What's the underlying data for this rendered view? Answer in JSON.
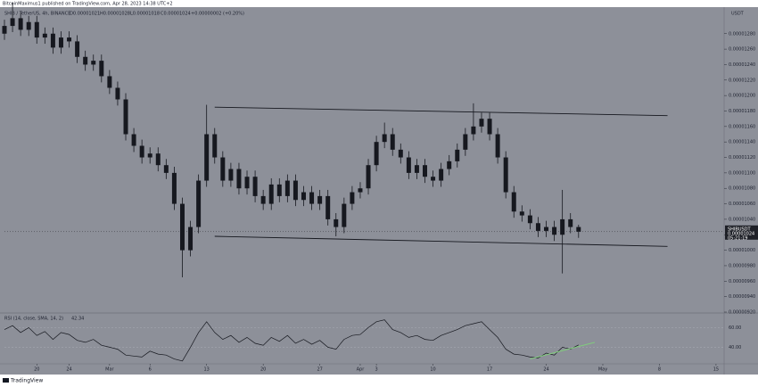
{
  "chart_data": {
    "type": "candlestick",
    "published": "BitcoinMaximus1 published on TradingView.com, Apr 28, 2023 14:38 UTC+2",
    "legend": {
      "symbol": "SHIB / TetherUS, 4h, BINANCE",
      "open": "O0.00001021",
      "high": "H0.00001028",
      "low": "L0.00001018",
      "close": "C0.00001024",
      "change": "+0.00000002 (+0.20%)"
    },
    "currency": "USDT",
    "up_color": "#16181f",
    "down_color": "#16181f",
    "background": "#8d9099",
    "x": [
      "Feb 16",
      "Feb 17",
      "Feb 18",
      "Feb 19",
      "Feb 20",
      "Feb 21",
      "Feb 22",
      "Feb 23",
      "Feb 24",
      "Feb 25",
      "Feb 26",
      "Feb 27",
      "Feb 28",
      "Mar 1",
      "Mar 2",
      "Mar 3",
      "Mar 4",
      "Mar 5",
      "Mar 6",
      "Mar 7",
      "Mar 8",
      "Mar 9",
      "Mar 10",
      "Mar 11",
      "Mar 12",
      "Mar 13",
      "Mar 14",
      "Mar 15",
      "Mar 16",
      "Mar 17",
      "Mar 18",
      "Mar 19",
      "Mar 20",
      "Mar 21",
      "Mar 22",
      "Mar 23",
      "Mar 24",
      "Mar 25",
      "Mar 26",
      "Mar 27",
      "Mar 28",
      "Mar 29",
      "Mar 30",
      "Mar 31",
      "Apr 1",
      "Apr 2",
      "Apr 3",
      "Apr 4",
      "Apr 5",
      "Apr 6",
      "Apr 7",
      "Apr 8",
      "Apr 9",
      "Apr 10",
      "Apr 11",
      "Apr 12",
      "Apr 13",
      "Apr 14",
      "Apr 15",
      "Apr 16",
      "Apr 17",
      "Apr 18",
      "Apr 19",
      "Apr 20",
      "Apr 21",
      "Apr 22",
      "Apr 23",
      "Apr 24",
      "Apr 25",
      "Apr 26",
      "Apr 27",
      "Apr 28"
    ],
    "open": [
      1.28e-05,
      1.29e-05,
      1.3e-05,
      1.285e-05,
      1.295e-05,
      1.275e-05,
      1.28e-05,
      1.262e-05,
      1.275e-05,
      1.27e-05,
      1.25e-05,
      1.24e-05,
      1.245e-05,
      1.225e-05,
      1.21e-05,
      1.195e-05,
      1.15e-05,
      1.135e-05,
      1.12e-05,
      1.125e-05,
      1.11e-05,
      1.1e-05,
      1.06e-05,
      1e-05,
      1.03e-05,
      1.09e-05,
      1.15e-05,
      1.12e-05,
      1.09e-05,
      1.105e-05,
      1.08e-05,
      1.095e-05,
      1.07e-05,
      1.06e-05,
      1.085e-05,
      1.07e-05,
      1.09e-05,
      1.065e-05,
      1.075e-05,
      1.06e-05,
      1.07e-05,
      1.04e-05,
      1.03e-05,
      1.06e-05,
      1.075e-05,
      1.08e-05,
      1.11e-05,
      1.14e-05,
      1.15e-05,
      1.13e-05,
      1.12e-05,
      1.1e-05,
      1.11e-05,
      1.095e-05,
      1.09e-05,
      1.105e-05,
      1.115e-05,
      1.13e-05,
      1.15e-05,
      1.16e-05,
      1.17e-05,
      1.15e-05,
      1.12e-05,
      1.075e-05,
      1.05e-05,
      1.045e-05,
      1.035e-05,
      1.025e-05,
      1.03e-05,
      1.02e-05,
      1.04e-05,
      1.03e-05
    ],
    "high": [
      1.298e-05,
      1.32e-05,
      1.308e-05,
      1.303e-05,
      1.303e-05,
      1.288e-05,
      1.288e-05,
      1.283e-05,
      1.283e-05,
      1.278e-05,
      1.258e-05,
      1.253e-05,
      1.253e-05,
      1.233e-05,
      1.218e-05,
      1.203e-05,
      1.158e-05,
      1.143e-05,
      1.133e-05,
      1.133e-05,
      1.118e-05,
      1.108e-05,
      1.068e-05,
      1.038e-05,
      1.098e-05,
      1.188e-05,
      1.158e-05,
      1.128e-05,
      1.113e-05,
      1.113e-05,
      1.103e-05,
      1.103e-05,
      1.078e-05,
      1.093e-05,
      1.093e-05,
      1.098e-05,
      1.098e-05,
      1.083e-05,
      1.083e-05,
      1.078e-05,
      1.078e-05,
      1.048e-05,
      1.068e-05,
      1.083e-05,
      1.088e-05,
      1.118e-05,
      1.148e-05,
      1.165e-05,
      1.158e-05,
      1.138e-05,
      1.128e-05,
      1.118e-05,
      1.118e-05,
      1.103e-05,
      1.113e-05,
      1.123e-05,
      1.138e-05,
      1.158e-05,
      1.19e-05,
      1.178e-05,
      1.178e-05,
      1.158e-05,
      1.128e-05,
      1.083e-05,
      1.058e-05,
      1.053e-05,
      1.043e-05,
      1.038e-05,
      1.038e-05,
      1.078e-05,
      1.048e-05,
      1.033e-05
    ],
    "low": [
      1.272e-05,
      1.282e-05,
      1.277e-05,
      1.277e-05,
      1.267e-05,
      1.267e-05,
      1.254e-05,
      1.254e-05,
      1.262e-05,
      1.242e-05,
      1.232e-05,
      1.232e-05,
      1.217e-05,
      1.202e-05,
      1.187e-05,
      1.142e-05,
      1.127e-05,
      1.112e-05,
      1.112e-05,
      1.102e-05,
      1.092e-05,
      1.052e-05,
      9.65e-06,
      9.92e-06,
      1.022e-05,
      1.082e-05,
      1.112e-05,
      1.082e-05,
      1.082e-05,
      1.072e-05,
      1.072e-05,
      1.062e-05,
      1.052e-05,
      1.052e-05,
      1.062e-05,
      1.062e-05,
      1.057e-05,
      1.057e-05,
      1.052e-05,
      1.052e-05,
      1.032e-05,
      1.018e-05,
      1.022e-05,
      1.052e-05,
      1.067e-05,
      1.072e-05,
      1.102e-05,
      1.132e-05,
      1.122e-05,
      1.112e-05,
      1.092e-05,
      1.092e-05,
      1.087e-05,
      1.082e-05,
      1.082e-05,
      1.097e-05,
      1.107e-05,
      1.122e-05,
      1.142e-05,
      1.152e-05,
      1.142e-05,
      1.112e-05,
      1.067e-05,
      1.042e-05,
      1.037e-05,
      1.027e-05,
      1.017e-05,
      1.017e-05,
      1.012e-05,
      9.7e-06,
      1.022e-05,
      1.016e-05
    ],
    "close": [
      1.29e-05,
      1.3e-05,
      1.285e-05,
      1.295e-05,
      1.275e-05,
      1.28e-05,
      1.262e-05,
      1.275e-05,
      1.27e-05,
      1.25e-05,
      1.24e-05,
      1.245e-05,
      1.225e-05,
      1.21e-05,
      1.195e-05,
      1.15e-05,
      1.135e-05,
      1.12e-05,
      1.125e-05,
      1.11e-05,
      1.1e-05,
      1.06e-05,
      1e-05,
      1.03e-05,
      1.09e-05,
      1.15e-05,
      1.12e-05,
      1.09e-05,
      1.105e-05,
      1.08e-05,
      1.095e-05,
      1.07e-05,
      1.06e-05,
      1.085e-05,
      1.07e-05,
      1.09e-05,
      1.065e-05,
      1.075e-05,
      1.06e-05,
      1.07e-05,
      1.04e-05,
      1.03e-05,
      1.06e-05,
      1.075e-05,
      1.08e-05,
      1.11e-05,
      1.14e-05,
      1.15e-05,
      1.13e-05,
      1.12e-05,
      1.1e-05,
      1.11e-05,
      1.095e-05,
      1.09e-05,
      1.105e-05,
      1.115e-05,
      1.13e-05,
      1.15e-05,
      1.16e-05,
      1.17e-05,
      1.15e-05,
      1.12e-05,
      1.075e-05,
      1.05e-05,
      1.045e-05,
      1.035e-05,
      1.025e-05,
      1.03e-05,
      1.02e-05,
      1.04e-05,
      1.03e-05,
      1.024e-05
    ],
    "xlim": [
      "Feb 16",
      "May 16"
    ],
    "xticks": [
      {
        "value": "Feb 20",
        "label": "20"
      },
      {
        "value": "Feb 24",
        "label": "24"
      },
      {
        "value": "Mar 1",
        "label": "Mar"
      },
      {
        "value": "Mar 6",
        "label": "6"
      },
      {
        "value": "Mar 13",
        "label": "13"
      },
      {
        "value": "Mar 20",
        "label": "20"
      },
      {
        "value": "Mar 27",
        "label": "27"
      },
      {
        "value": "Apr 1",
        "label": "Apr"
      },
      {
        "value": "Apr 3",
        "label": "3"
      },
      {
        "value": "Apr 10",
        "label": "10"
      },
      {
        "value": "Apr 17",
        "label": "17"
      },
      {
        "value": "Apr 24",
        "label": "24"
      },
      {
        "value": "May 1",
        "label": "May"
      },
      {
        "value": "May 8",
        "label": "8"
      },
      {
        "value": "May 15",
        "label": "15"
      }
    ],
    "ylim": [
      9.2e-06,
      1.312e-05
    ],
    "yticks": [
      {
        "value": 1.28e-05,
        "label": "0.00001280"
      },
      {
        "value": 1.26e-05,
        "label": "0.00001260"
      },
      {
        "value": 1.24e-05,
        "label": "0.00001240"
      },
      {
        "value": 1.22e-05,
        "label": "0.00001220"
      },
      {
        "value": 1.2e-05,
        "label": "0.00001200"
      },
      {
        "value": 1.18e-05,
        "label": "0.00001180"
      },
      {
        "value": 1.16e-05,
        "label": "0.00001160"
      },
      {
        "value": 1.14e-05,
        "label": "0.00001140"
      },
      {
        "value": 1.12e-05,
        "label": "0.00001120"
      },
      {
        "value": 1.1e-05,
        "label": "0.00001100"
      },
      {
        "value": 1.08e-05,
        "label": "0.00001080"
      },
      {
        "value": 1.06e-05,
        "label": "0.00001060"
      },
      {
        "value": 1.04e-05,
        "label": "0.00001040"
      },
      {
        "value": 1.02e-05,
        "label": "0.00001020"
      },
      {
        "value": 1e-05,
        "label": "0.00001000"
      },
      {
        "value": 9.8e-06,
        "label": "0.00000980"
      },
      {
        "value": 9.6e-06,
        "label": "0.00000960"
      },
      {
        "value": 9.4e-06,
        "label": "0.00000940"
      },
      {
        "value": 9.2e-06,
        "label": "0.00000920"
      }
    ],
    "price_tag": {
      "symbol": "SHIBUSDT",
      "value": 1.024e-05,
      "countdown": "05:21:19"
    },
    "channel": [
      {
        "x": [
          "Mar 14",
          "May 9"
        ],
        "y": [
          1.185e-05,
          1.174e-05
        ]
      },
      {
        "x": [
          "Mar 14",
          "May 9"
        ],
        "y": [
          1.018e-05,
          1.005e-05
        ]
      }
    ],
    "rsi": {
      "label": "RSI (14, close, SMA, 14, 2)",
      "color": "#16181f",
      "values": [
        58,
        62,
        55,
        60,
        52,
        56,
        48,
        55,
        53,
        47,
        45,
        48,
        42,
        40,
        38,
        32,
        31,
        30,
        36,
        33,
        32,
        28,
        26,
        40,
        55,
        66,
        55,
        48,
        52,
        45,
        50,
        44,
        42,
        50,
        46,
        52,
        44,
        48,
        43,
        47,
        40,
        38,
        48,
        52,
        53,
        60,
        66,
        68,
        58,
        55,
        50,
        52,
        48,
        47,
        52,
        55,
        58,
        62,
        64,
        66,
        58,
        50,
        38,
        33,
        32,
        30,
        29,
        34,
        32,
        40,
        38,
        42.34
      ],
      "ylim": [
        24,
        74
      ],
      "yticks": [
        {
          "value": 60,
          "label": "60.00"
        },
        {
          "value": 40,
          "label": "40.00"
        }
      ],
      "trendline": {
        "x": [
          "Apr 22",
          "Apr 30"
        ],
        "y": [
          28,
          45
        ],
        "color": "#7fd17a"
      }
    },
    "footer": "TradingView"
  }
}
